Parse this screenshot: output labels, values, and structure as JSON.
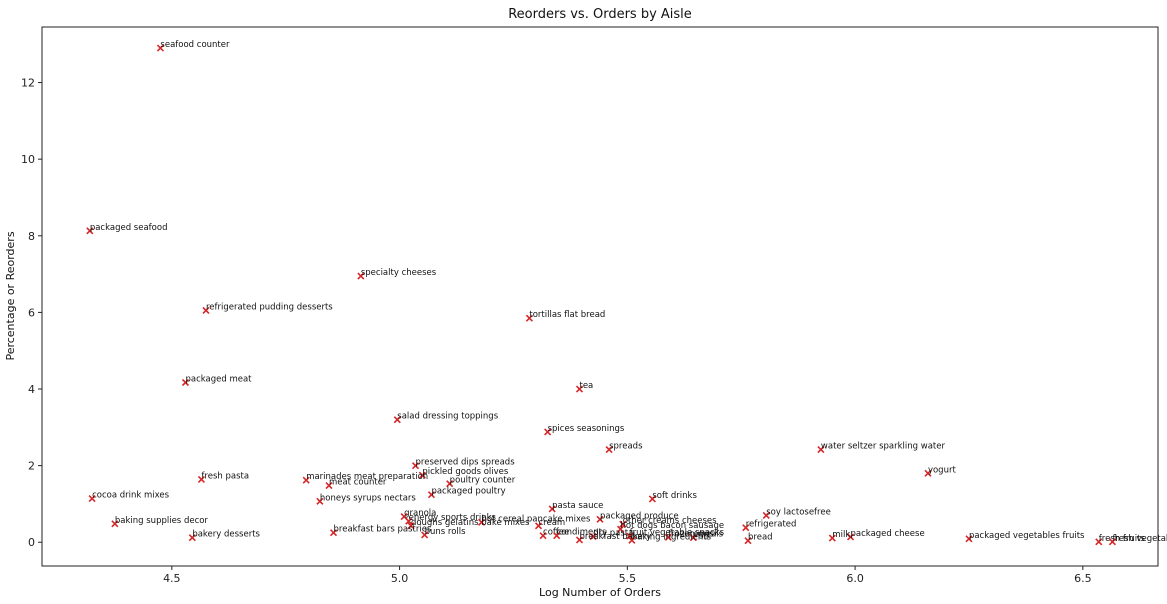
{
  "chart_data": {
    "type": "scatter",
    "title": "Reorders vs. Orders by Aisle",
    "xlabel": "Log Number of Orders",
    "ylabel": "Percentage or Reorders",
    "xlim": [
      4.215,
      6.665
    ],
    "ylim": [
      -0.62,
      13.45
    ],
    "xticks": [
      "4.5",
      "5.0",
      "5.5",
      "6.0",
      "6.5"
    ],
    "yticks": [
      "0",
      "2",
      "4",
      "6",
      "8",
      "10",
      "12"
    ],
    "xtick_values": [
      4.5,
      5.0,
      5.5,
      6.0,
      6.5
    ],
    "ytick_values": [
      0,
      2,
      4,
      6,
      8,
      10,
      12
    ],
    "grid": false,
    "marker": "x",
    "marker_color": "#d62728",
    "points": [
      {
        "label": "seafood counter",
        "x": 4.475,
        "y": 12.9
      },
      {
        "label": "packaged seafood",
        "x": 4.32,
        "y": 8.13
      },
      {
        "label": "specialty cheeses",
        "x": 4.915,
        "y": 6.95
      },
      {
        "label": "refrigerated pudding desserts",
        "x": 4.575,
        "y": 6.05
      },
      {
        "label": "tortillas flat bread",
        "x": 5.285,
        "y": 5.85
      },
      {
        "label": "packaged meat",
        "x": 4.53,
        "y": 4.17
      },
      {
        "label": "tea",
        "x": 5.395,
        "y": 4.0
      },
      {
        "label": "salad dressing toppings",
        "x": 4.995,
        "y": 3.2
      },
      {
        "label": "spices seasonings",
        "x": 5.325,
        "y": 2.88
      },
      {
        "label": "spreads",
        "x": 5.46,
        "y": 2.42
      },
      {
        "label": "water seltzer sparkling water",
        "x": 5.925,
        "y": 2.42
      },
      {
        "label": "preserved dips spreads",
        "x": 5.035,
        "y": 2.0
      },
      {
        "label": "yogurt",
        "x": 6.16,
        "y": 1.8
      },
      {
        "label": "pickled goods olives",
        "x": 5.05,
        "y": 1.75
      },
      {
        "label": "fresh pasta",
        "x": 4.565,
        "y": 1.64
      },
      {
        "label": "marinades meat preparation",
        "x": 4.795,
        "y": 1.62
      },
      {
        "label": "poultry counter",
        "x": 5.11,
        "y": 1.53
      },
      {
        "label": "meat counter",
        "x": 4.845,
        "y": 1.48
      },
      {
        "label": "packaged poultry",
        "x": 5.07,
        "y": 1.24
      },
      {
        "label": "cocoa drink mixes",
        "x": 4.325,
        "y": 1.14
      },
      {
        "label": "soft drinks",
        "x": 5.555,
        "y": 1.13
      },
      {
        "label": "honeys syrups nectars",
        "x": 4.825,
        "y": 1.07
      },
      {
        "label": "pasta sauce",
        "x": 5.335,
        "y": 0.87
      },
      {
        "label": "soy lactosefree",
        "x": 5.805,
        "y": 0.7
      },
      {
        "label": "granola",
        "x": 5.01,
        "y": 0.67
      },
      {
        "label": "packaged produce",
        "x": 5.44,
        "y": 0.6
      },
      {
        "label": "energy sports drinks",
        "x": 5.02,
        "y": 0.55
      },
      {
        "label": "hot cereal pancake mixes",
        "x": 5.18,
        "y": 0.52
      },
      {
        "label": "other creams cheeses",
        "x": 5.49,
        "y": 0.47
      },
      {
        "label": "baking supplies decor",
        "x": 4.375,
        "y": 0.48
      },
      {
        "label": "doughs gelatins bake mixes",
        "x": 5.025,
        "y": 0.43
      },
      {
        "label": "cream",
        "x": 5.305,
        "y": 0.43
      },
      {
        "label": "refrigerated",
        "x": 5.76,
        "y": 0.38
      },
      {
        "label": "hot dogs bacon sausage",
        "x": 5.485,
        "y": 0.34
      },
      {
        "label": "breakfast bars pastries",
        "x": 4.855,
        "y": 0.25
      },
      {
        "label": "buns rolls",
        "x": 5.055,
        "y": 0.19
      },
      {
        "label": "coffee",
        "x": 5.315,
        "y": 0.17
      },
      {
        "label": "condiments",
        "x": 5.345,
        "y": 0.17
      },
      {
        "label": "dry pasta",
        "x": 5.425,
        "y": 0.15
      },
      {
        "label": "fruit vegetable snacks",
        "x": 5.505,
        "y": 0.16
      },
      {
        "label": "frozen meals",
        "x": 5.59,
        "y": 0.13
      },
      {
        "label": "eggs",
        "x": 5.645,
        "y": 0.12
      },
      {
        "label": "bakery desserts",
        "x": 4.545,
        "y": 0.12
      },
      {
        "label": "packaged cheese",
        "x": 5.99,
        "y": 0.14
      },
      {
        "label": "milk",
        "x": 5.95,
        "y": 0.11
      },
      {
        "label": "breakfast bakery",
        "x": 5.395,
        "y": 0.06
      },
      {
        "label": "baking ingredients",
        "x": 5.51,
        "y": 0.05
      },
      {
        "label": "packaged vegetables fruits",
        "x": 6.25,
        "y": 0.09
      },
      {
        "label": "bread",
        "x": 5.765,
        "y": 0.04
      },
      {
        "label": "fresh fruits",
        "x": 6.535,
        "y": 0.01
      },
      {
        "label": "fresh vegetables",
        "x": 6.565,
        "y": 0.01
      }
    ]
  }
}
